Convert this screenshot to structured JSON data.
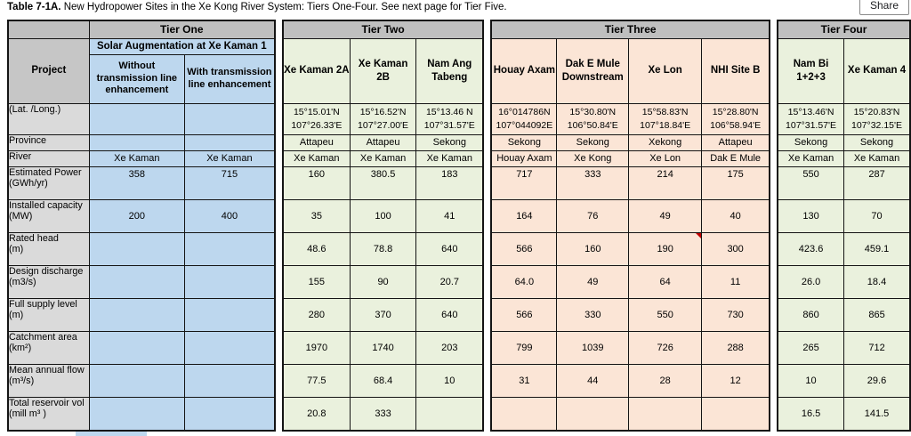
{
  "page": {
    "title_bold": "Table 7-1A.",
    "title_rest": " New Hydropower Sites in the Xe Kong River System: Tiers One-Four. See next page for Tier Five.",
    "share_label": "Share"
  },
  "colors": {
    "header_gray": "#bfbfbf",
    "label_gray": "#dadada",
    "project_label_gray": "#c6c6c6",
    "blue": "#bdd7ee",
    "green": "#eaf1dd",
    "peach": "#fbe5d6",
    "comment_red": "#c00000"
  },
  "row_labels": {
    "project": "Project",
    "latlong": "(Lat. /Long.)",
    "province": "Province",
    "river": "River",
    "values": [
      "Estimated Power\n(GWh/yr)",
      "Installed capacity\n(MW)",
      "Rated head\n(m)",
      "Design discharge\n(m3/s)",
      "Full supply level\n(m)",
      "Catchment area\n(km²)",
      "Mean annual flow\n(m³/s)",
      "Total reservoir vol\n(mill m³ )"
    ]
  },
  "tiers": [
    {
      "name": "Tier One",
      "color_key": "blue",
      "subheader": "Solar Augmentation at Xe Kaman 1",
      "columns": [
        {
          "project": "Without transmission line enhancement",
          "latlong": "",
          "province": "",
          "river": "Xe Kaman",
          "values": [
            "358",
            "200",
            "",
            "",
            "",
            "",
            "",
            ""
          ]
        },
        {
          "project": "With transmission line enhancement",
          "latlong": "",
          "province": "",
          "river": "Xe Kaman",
          "values": [
            "715",
            "400",
            "",
            "",
            "",
            "",
            "",
            ""
          ]
        }
      ]
    },
    {
      "name": "Tier Two",
      "color_key": "green",
      "columns": [
        {
          "project": "Xe Kaman 2A",
          "latlong": "15°15.01'N\n107°26.33'E",
          "province": "Attapeu",
          "river": "Xe Kaman",
          "values": [
            "160",
            "35",
            "48.6",
            "155",
            "280",
            "1970",
            "77.5",
            "20.8"
          ]
        },
        {
          "project": "Xe Kaman 2B",
          "latlong": "15°16.52'N\n107°27.00'E",
          "province": "Attapeu",
          "river": "Xe Kaman",
          "values": [
            "380.5",
            "100",
            "78.8",
            "90",
            "370",
            "1740",
            "68.4",
            "333"
          ]
        },
        {
          "project": "Nam Ang Tabeng",
          "latlong": "15°13.46 N\n107°31.57'E",
          "province": "Sekong",
          "river": "Xe Kaman",
          "values": [
            "183",
            "41",
            "640",
            "20.7",
            "640",
            "203",
            "10",
            ""
          ]
        }
      ]
    },
    {
      "name": "Tier Three",
      "color_key": "peach",
      "columns": [
        {
          "project": "Houay Axam",
          "latlong": "16°014786N\n107°044092E",
          "province": "Sekong",
          "river": "Houay Axam",
          "values": [
            "717",
            "164",
            "566",
            "64.0",
            "566",
            "799",
            "31",
            ""
          ]
        },
        {
          "project": "Dak E Mule Downstream",
          "latlong": "15°30.80'N\n106°50.84'E",
          "province": "Sekong",
          "river": "Xe Kong",
          "values": [
            "333",
            "76",
            "160",
            "49",
            "330",
            "1039",
            "44",
            ""
          ]
        },
        {
          "project": "Xe Lon",
          "latlong": "15°58.83'N\n107°18.84'E",
          "province": "Xekong",
          "river": "Xe Lon",
          "values": [
            "214",
            "49",
            "190",
            "64",
            "550",
            "726",
            "28",
            ""
          ],
          "comment_value_index": 2
        },
        {
          "project": "NHI Site B",
          "latlong": "15°28.80'N\n106°58.94'E",
          "province": "Attapeu",
          "river": "Dak E Mule",
          "values": [
            "175",
            "40",
            "300",
            "11",
            "730",
            "288",
            "12",
            ""
          ]
        }
      ]
    },
    {
      "name": "Tier Four",
      "color_key": "green",
      "columns": [
        {
          "project": "Nam Bi 1+2+3",
          "latlong": "15°13.46'N\n107°31.57'E",
          "province": "Sekong",
          "river": "Xe Kaman",
          "values": [
            "550",
            "130",
            "423.6",
            "26.0",
            "860",
            "265",
            "10",
            "16.5"
          ]
        },
        {
          "project": "Xe Kaman 4",
          "latlong": "15°20.83'N\n107°32.15'E",
          "province": "Sekong",
          "river": "Xe Kaman",
          "values": [
            "287",
            "70",
            "459.1",
            "18.4",
            "865",
            "712",
            "29.6",
            "141.5"
          ]
        }
      ]
    }
  ]
}
